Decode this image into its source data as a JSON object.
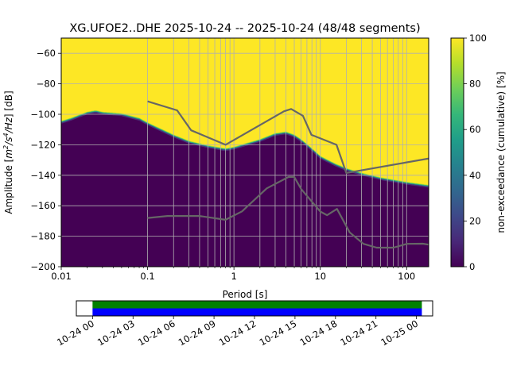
{
  "chart_data": [
    {
      "type": "heatmap",
      "title": "XG.UFOE2..DHE   2025-10-24 -- 2025-10-24  (48/48 segments)",
      "xlabel": "Period [s]",
      "ylabel_prefix": "Amplitude [",
      "ylabel_unit_base": "m",
      "ylabel_unit_exp1": "2",
      "ylabel_unit_mid": "/s",
      "ylabel_unit_exp2": "4",
      "ylabel_unit_end": "/Hz",
      "ylabel_suffix": "] [dB]",
      "x_scale": "log",
      "xlim": [
        0.01,
        180
      ],
      "ylim": [
        -200,
        -50
      ],
      "xticks": [
        0.01,
        0.1,
        1,
        10,
        100
      ],
      "xtick_labels": [
        "0.01",
        "0.1",
        "1",
        "10",
        "100"
      ],
      "yticks": [
        -200,
        -180,
        -160,
        -140,
        -120,
        -100,
        -80,
        -60
      ],
      "ytick_labels": [
        "−200",
        "−180",
        "−160",
        "−140",
        "−120",
        "−100",
        "−80",
        "−60"
      ],
      "vertical_grid_periods": [
        0.1,
        0.2,
        0.3,
        0.4,
        0.5,
        0.6,
        0.7,
        0.8,
        0.9,
        1,
        2,
        3,
        4,
        5,
        6,
        7,
        8,
        9,
        10,
        20,
        30,
        40,
        50,
        60,
        70,
        80,
        90,
        100
      ],
      "psd_boundary": {
        "period": [
          0.01,
          0.013,
          0.016,
          0.02,
          0.025,
          0.03,
          0.05,
          0.08,
          0.1,
          0.2,
          0.3,
          0.5,
          0.8,
          1,
          1.5,
          2,
          3,
          4,
          5,
          6,
          8,
          10,
          15,
          20,
          30,
          50,
          100,
          180
        ],
        "db": [
          -106,
          -104,
          -102,
          -100,
          -99,
          -100,
          -101,
          -104,
          -107,
          -115,
          -119,
          -122,
          -124,
          -123,
          -120,
          -118,
          -114,
          -113,
          -115,
          -118,
          -124,
          -129,
          -134,
          -137,
          -140,
          -143,
          -146,
          -148
        ]
      },
      "noise_models": [
        {
          "name": "high-noise-model",
          "period": [
            0.1,
            0.22,
            0.32,
            0.8,
            3.8,
            4.6,
            6.3,
            7.9,
            15.4,
            20,
            180
          ],
          "db": [
            -91.5,
            -97.4,
            -110.5,
            -120,
            -98,
            -96.5,
            -101,
            -113.5,
            -120,
            -138.5,
            -129
          ]
        },
        {
          "name": "low-noise-model",
          "period": [
            0.1,
            0.17,
            0.4,
            0.8,
            1.24,
            2.4,
            4.3,
            5,
            6,
            10,
            12,
            15.6,
            21.9,
            31.6,
            45,
            70,
            101,
            154,
            180
          ],
          "db": [
            -168,
            -166.7,
            -166.7,
            -169.2,
            -163.7,
            -148.6,
            -141.1,
            -141.1,
            -149,
            -163.8,
            -166.2,
            -162.1,
            -177.5,
            -185,
            -187.5,
            -187.5,
            -185,
            -184.9,
            -185.5
          ]
        }
      ],
      "colorbar": {
        "label": "non-exceedance (cumulative) [%]",
        "ticks": [
          0,
          20,
          40,
          60,
          80,
          100
        ],
        "range": [
          0,
          100
        ],
        "colors": [
          "#440154",
          "#482878",
          "#3e4989",
          "#31688e",
          "#26828e",
          "#1f9e89",
          "#35b779",
          "#6ece58",
          "#b5de2b",
          "#fde725"
        ]
      }
    },
    {
      "type": "timeline",
      "xtick_labels": [
        "10-24 00",
        "10-24 03",
        "10-24 06",
        "10-24 09",
        "10-24 12",
        "10-24 15",
        "10-24 18",
        "10-24 21",
        "10-25 00"
      ],
      "range_hours": [
        -1.2,
        25.2
      ],
      "coverage_hours": [
        0,
        24.4
      ],
      "bars": [
        {
          "name": "data",
          "color": "#008000"
        },
        {
          "name": "used",
          "color": "#0000ff"
        }
      ]
    }
  ]
}
